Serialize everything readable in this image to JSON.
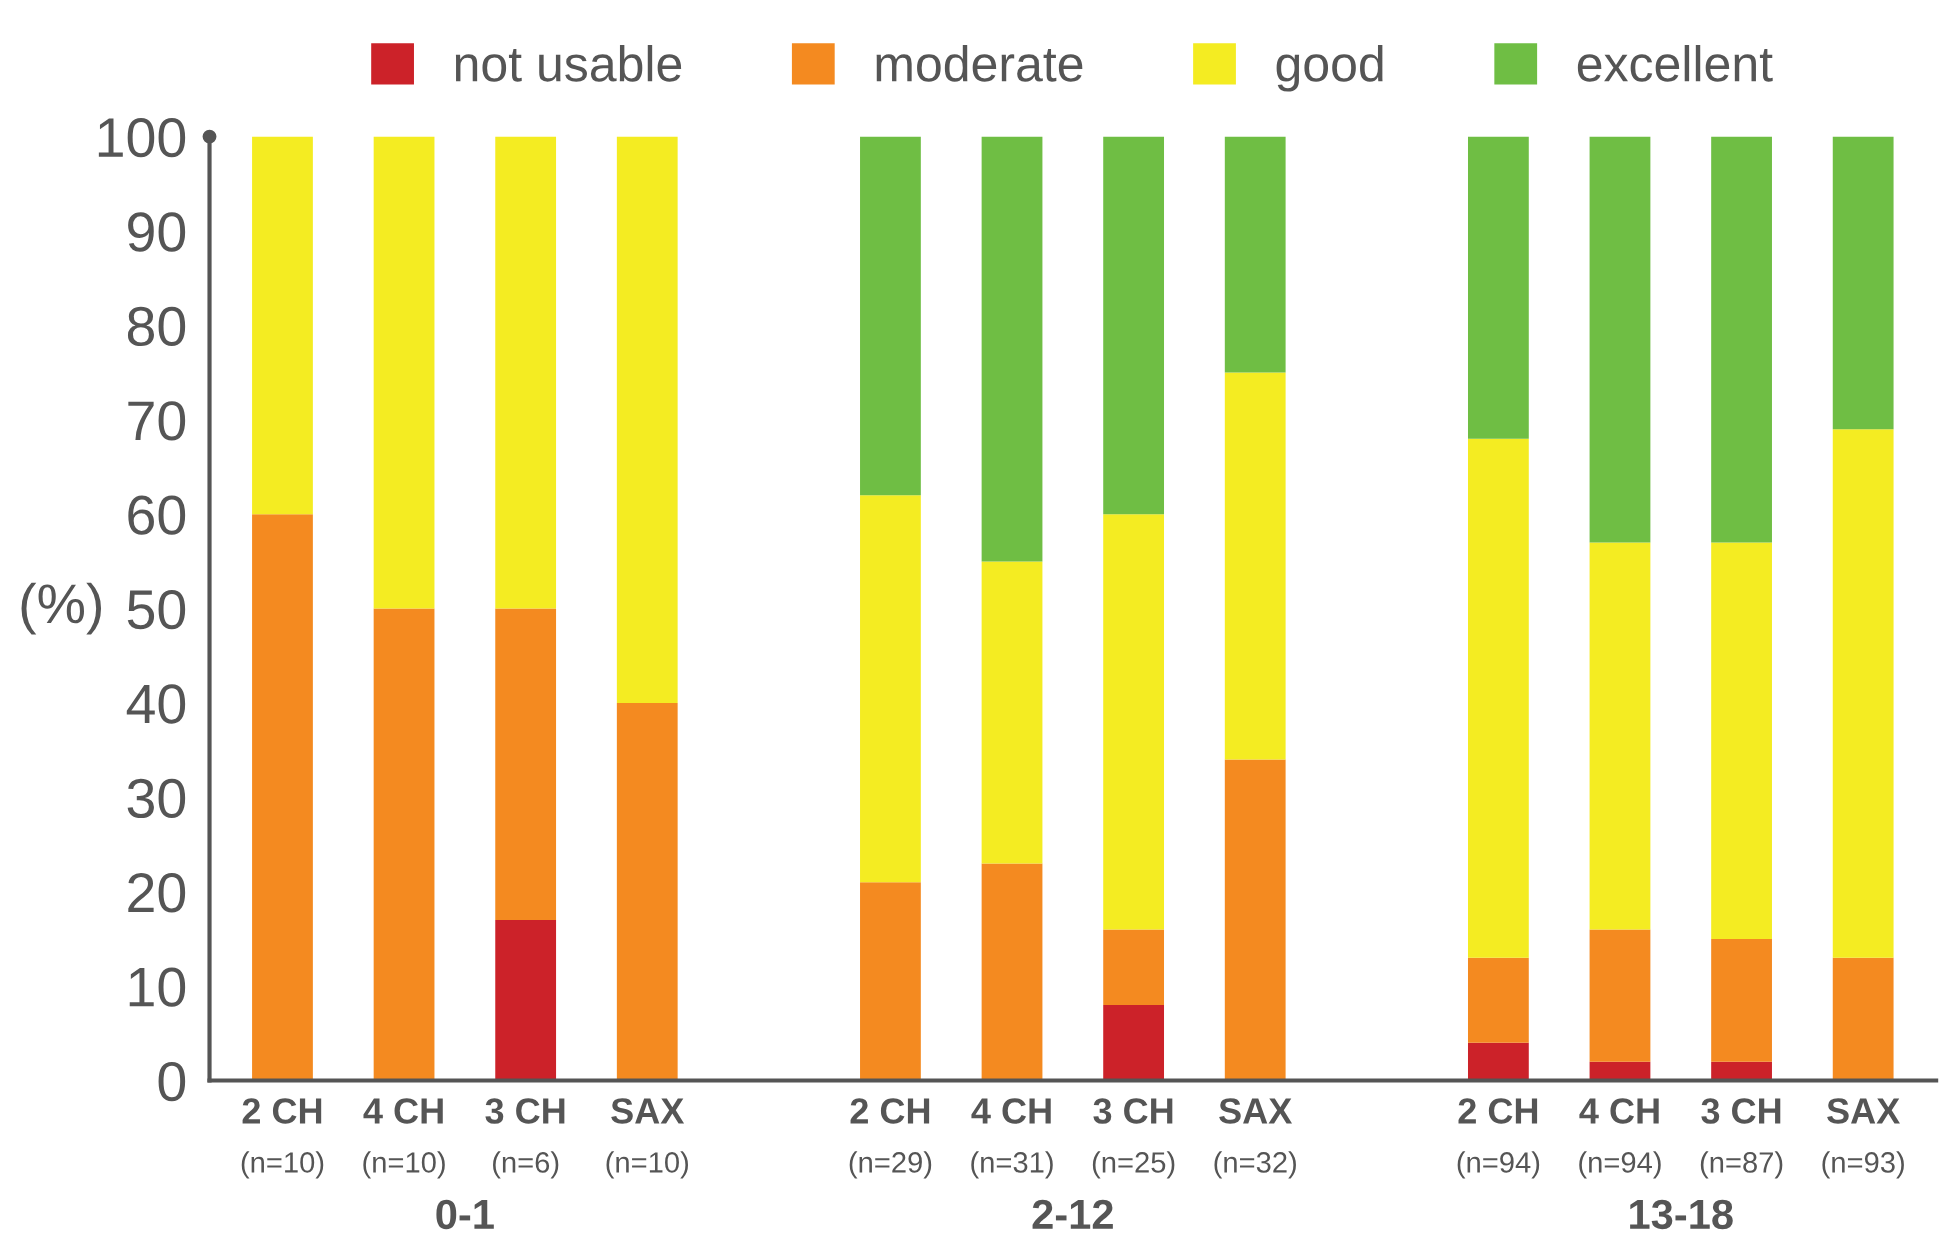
{
  "chart_data": {
    "type": "bar",
    "stacked": true,
    "ylabel": "(%)",
    "categories": [
      "2 CH\n(n=10)",
      "4 CH\n(n=10)",
      "3 CH\n(n=6)",
      "SAX\n(n=10)",
      null,
      "2 CH\n(n=29)",
      "4 CH\n(n=31)",
      "3 CH\n(n=25)",
      "SAX\n(n=32)",
      null,
      "2 CH\n(n=94)",
      "4 CH\n(n=94)",
      "3 CH\n(n=87)",
      "SAX\n(n=93)"
    ],
    "series": [
      {
        "name": "not usable",
        "color": "#cc2229",
        "values": [
          0,
          0,
          17,
          0,
          null,
          0,
          0,
          8,
          0,
          null,
          4,
          2,
          2,
          0
        ]
      },
      {
        "name": "moderate",
        "color": "#f48a20",
        "values": [
          60,
          50,
          33,
          40,
          null,
          21,
          23,
          8,
          34,
          null,
          9,
          14,
          13,
          13
        ]
      },
      {
        "name": "good",
        "color": "#f4ec22",
        "values": [
          40,
          50,
          50,
          60,
          null,
          41,
          32,
          44,
          41,
          null,
          55,
          41,
          42,
          56
        ]
      },
      {
        "name": "excellent",
        "color": "#6fbe44",
        "values": [
          0,
          0,
          0,
          0,
          null,
          38,
          45,
          40,
          25,
          null,
          32,
          43,
          43,
          31
        ]
      }
    ],
    "ylim": [
      0,
      100
    ],
    "yticks": [
      0,
      10,
      20,
      30,
      40,
      50,
      60,
      70,
      80,
      90,
      100
    ],
    "annotations": [
      "0-1",
      "2-12",
      "13-18"
    ],
    "grid": false,
    "legend": "top"
  }
}
